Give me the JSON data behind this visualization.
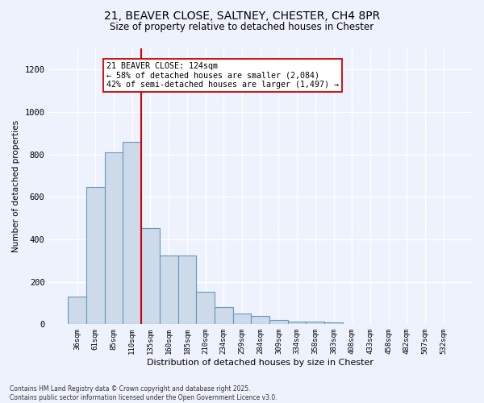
{
  "title_line1": "21, BEAVER CLOSE, SALTNEY, CHESTER, CH4 8PR",
  "title_line2": "Size of property relative to detached houses in Chester",
  "xlabel": "Distribution of detached houses by size in Chester",
  "ylabel": "Number of detached properties",
  "categories": [
    "36sqm",
    "61sqm",
    "85sqm",
    "110sqm",
    "135sqm",
    "160sqm",
    "185sqm",
    "210sqm",
    "234sqm",
    "259sqm",
    "284sqm",
    "309sqm",
    "334sqm",
    "358sqm",
    "383sqm",
    "408sqm",
    "433sqm",
    "458sqm",
    "482sqm",
    "507sqm",
    "532sqm"
  ],
  "values": [
    130,
    645,
    810,
    860,
    455,
    325,
    325,
    155,
    80,
    50,
    38,
    20,
    13,
    13,
    8,
    2,
    1,
    0,
    0,
    0,
    0
  ],
  "bar_color": "#ccdaea",
  "bar_edge_color": "#6699bb",
  "vline_x_index": 4,
  "vline_color": "#cc0000",
  "annotation_text": "21 BEAVER CLOSE: 124sqm\n← 58% of detached houses are smaller (2,084)\n42% of semi-detached houses are larger (1,497) →",
  "annotation_box_color": "#ffffff",
  "annotation_box_edge": "#cc0000",
  "ylim": [
    0,
    1300
  ],
  "yticks": [
    0,
    200,
    400,
    600,
    800,
    1000,
    1200
  ],
  "background_color": "#eef2fc",
  "grid_color": "#ffffff",
  "footer_line1": "Contains HM Land Registry data © Crown copyright and database right 2025.",
  "footer_line2": "Contains public sector information licensed under the Open Government Licence v3.0."
}
